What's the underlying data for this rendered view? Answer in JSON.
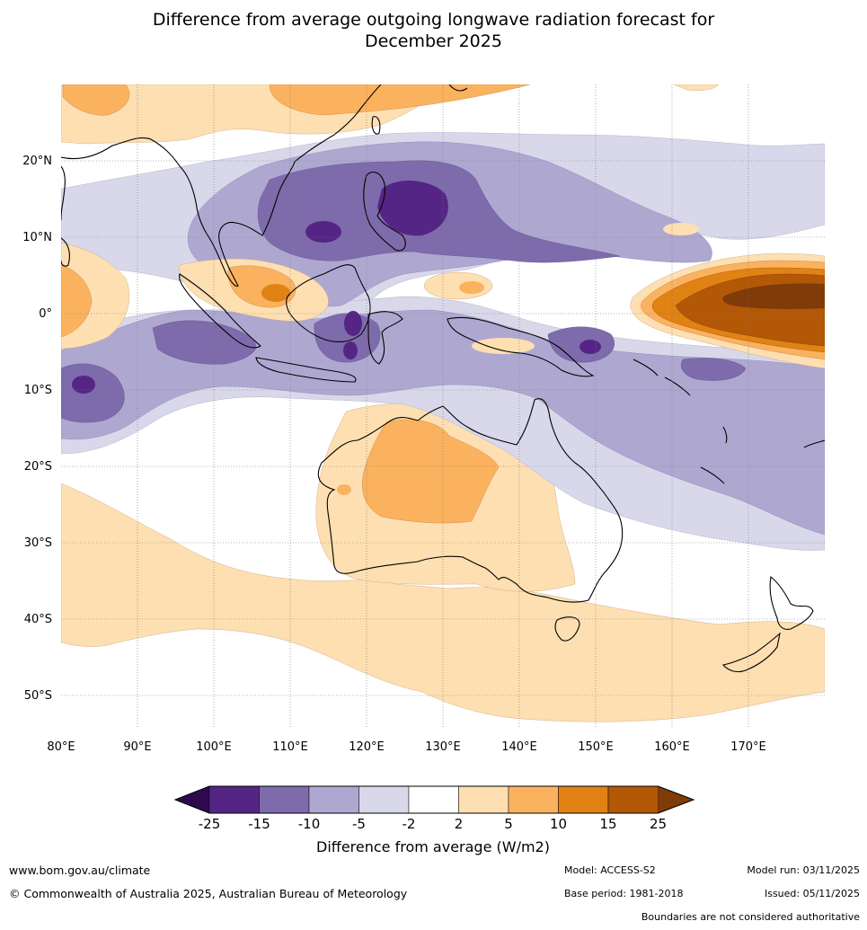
{
  "title": {
    "line1": "Difference from average outgoing longwave radiation forecast for",
    "line2": "December 2025"
  },
  "map": {
    "lon_ticks": [
      "80°E",
      "90°E",
      "100°E",
      "110°E",
      "120°E",
      "130°E",
      "140°E",
      "150°E",
      "160°E",
      "170°E"
    ],
    "lat_ticks": [
      "20°N",
      "10°N",
      "0°",
      "10°S",
      "20°S",
      "30°S",
      "40°S",
      "50°S"
    ],
    "lon_range": [
      80,
      180
    ],
    "lat_range": [
      -55,
      30
    ]
  },
  "colorbar": {
    "ticks": [
      "-25",
      "-15",
      "-10",
      "-5",
      "-2",
      "2",
      "5",
      "10",
      "15",
      "25"
    ],
    "colors": [
      "#2d0a4e",
      "#552586",
      "#7e6bab",
      "#aea8d1",
      "#d8d8ea",
      "#ffffff",
      "#fddfb2",
      "#fbb25f",
      "#e08214",
      "#b35806",
      "#7f3b08"
    ],
    "label": "Difference from average (W/m2)"
  },
  "footer": {
    "website": "www.bom.gov.au/climate",
    "copyright": "© Commonwealth of Australia 2025, Australian Bureau of Meteorology",
    "model": "Model: ACCESS-S2",
    "base_period": "Base period: 1981-2018",
    "model_run": "Model run: 03/11/2025",
    "issued": "Issued: 05/11/2025",
    "disclaimer": "Boundaries are not considered authoritative"
  }
}
